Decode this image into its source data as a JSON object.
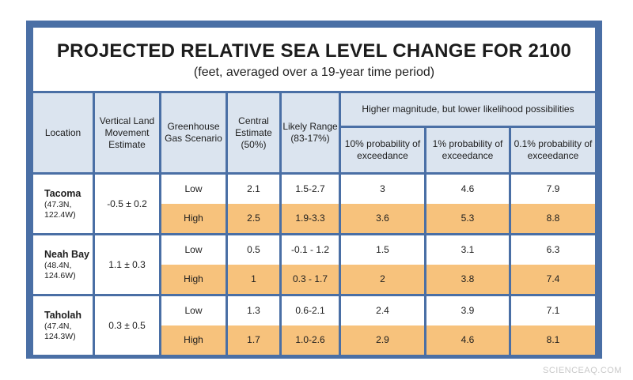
{
  "chart_data": {
    "type": "table",
    "title": "PROJECTED RELATIVE SEA LEVEL CHANGE FOR 2100",
    "subtitle": "(feet, averaged over a 19-year time period)",
    "headers": {
      "location": "Location",
      "vlm": "Vertical Land Movement Estimate",
      "scenario": "Greenhouse Gas Scenario",
      "central": "Central Estimate (50%)",
      "likely": "Likely Range (83-17%)",
      "group": "Higher magnitude, but lower likelihood possibilities",
      "p10": "10% probability of exceedance",
      "p1": "1% probability of exceedance",
      "p01": "0.1% probability of exceedance"
    },
    "rows": [
      {
        "name": "Tacoma",
        "coords": "(47.3N, 122.4W)",
        "vlm": "-0.5 ± 0.2",
        "low": {
          "scenario": "Low",
          "central": "2.1",
          "likely": "1.5-2.7",
          "p10": "3",
          "p1": "4.6",
          "p01": "7.9"
        },
        "high": {
          "scenario": "High",
          "central": "2.5",
          "likely": "1.9-3.3",
          "p10": "3.6",
          "p1": "5.3",
          "p01": "8.8"
        }
      },
      {
        "name": "Neah Bay",
        "coords": "(48.4N, 124.6W)",
        "vlm": "1.1 ± 0.3",
        "low": {
          "scenario": "Low",
          "central": "0.5",
          "likely": "-0.1 - 1.2",
          "p10": "1.5",
          "p1": "3.1",
          "p01": "6.3"
        },
        "high": {
          "scenario": "High",
          "central": "1",
          "likely": "0.3 - 1.7",
          "p10": "2",
          "p1": "3.8",
          "p01": "7.4"
        }
      },
      {
        "name": "Taholah",
        "coords": "(47.4N, 124.3W)",
        "vlm": "0.3 ± 0.5",
        "low": {
          "scenario": "Low",
          "central": "1.3",
          "likely": "0.6-2.1",
          "p10": "2.4",
          "p1": "3.9",
          "p01": "7.1"
        },
        "high": {
          "scenario": "High",
          "central": "1.7",
          "likely": "1.0-2.6",
          "p10": "2.9",
          "p1": "4.6",
          "p01": "8.1"
        }
      }
    ],
    "colors": {
      "frame": "#4a6fa5",
      "header": "#dbe4ef",
      "high_row": "#f7c27c"
    }
  },
  "watermark": "SCIENCEAQ.COM"
}
